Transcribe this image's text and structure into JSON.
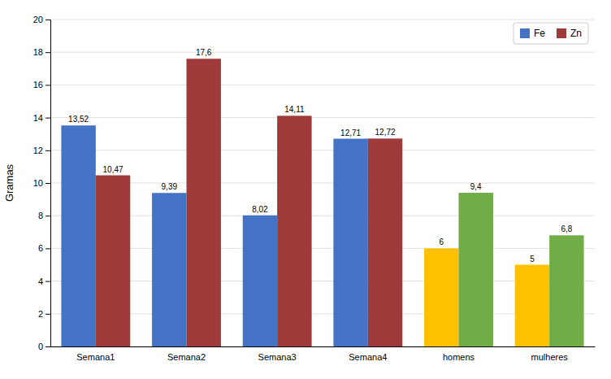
{
  "chart_data": {
    "type": "bar",
    "categories": [
      "Semana1",
      "Semana2",
      "Semana3",
      "Semana4",
      "homens",
      "mulheres"
    ],
    "series": [
      {
        "name": "Fe",
        "color": "#4472C4",
        "colors": [
          "#4472C4",
          "#4472C4",
          "#4472C4",
          "#4472C4",
          "#FFC000",
          "#FFC000"
        ],
        "values": [
          13.52,
          9.39,
          8.02,
          12.71,
          6.0,
          5.0
        ],
        "value_labels": [
          "13,52",
          "9,39",
          "8,02",
          "12,71",
          "6",
          "5"
        ]
      },
      {
        "name": "Zn",
        "color": "#9E3A3A",
        "colors": [
          "#9E3A3A",
          "#9E3A3A",
          "#9E3A3A",
          "#9E3A3A",
          "#70AD47",
          "#70AD47"
        ],
        "values": [
          10.47,
          17.6,
          14.11,
          12.72,
          9.4,
          6.8
        ],
        "value_labels": [
          "10,47",
          "17,6",
          "14,11",
          "12,72",
          "9,4",
          "6,8"
        ]
      }
    ],
    "y_label": "Gramas",
    "ylim": [
      0,
      20
    ],
    "yticks": [
      0,
      2,
      4,
      6,
      8,
      10,
      12,
      14,
      16,
      18,
      20
    ],
    "grid": true,
    "legend": "upper right",
    "data_labels": true
  }
}
